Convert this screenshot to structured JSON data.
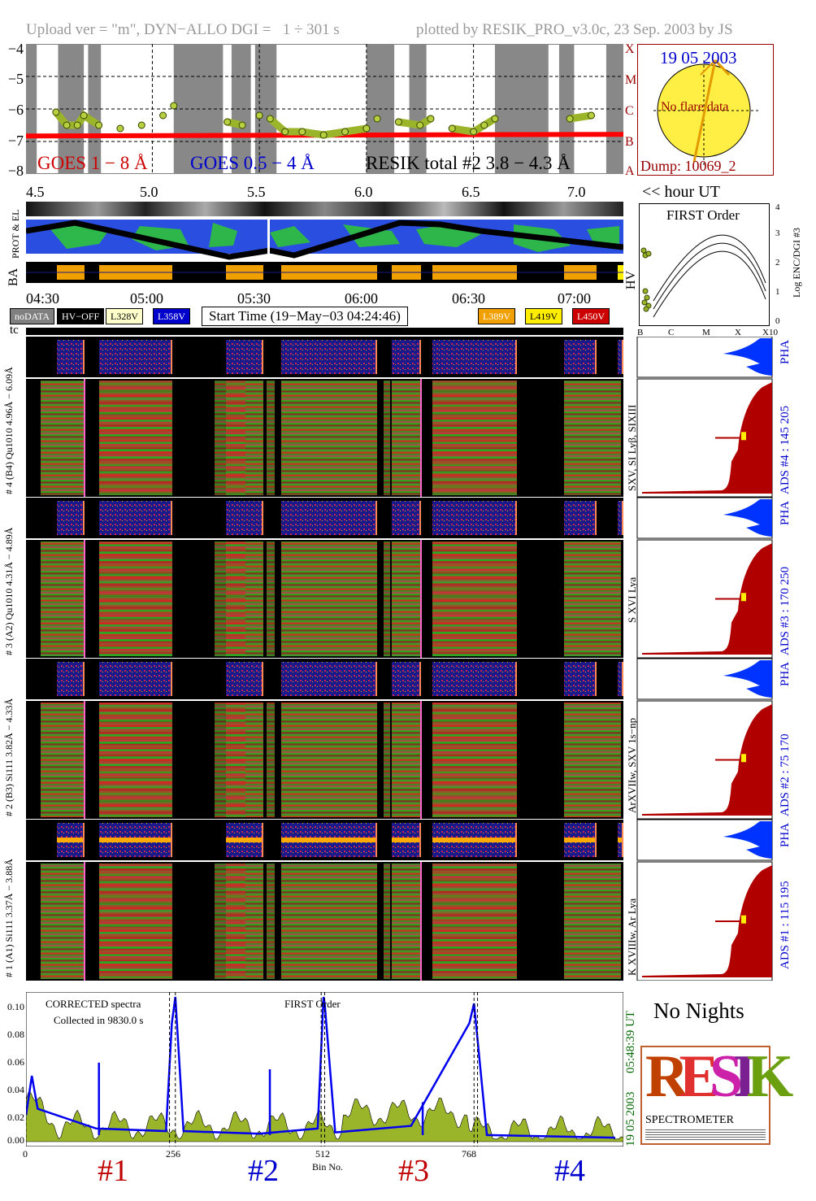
{
  "header": {
    "left": "Upload ver = \"m\", DYN−ALLO DGI =   1 ÷ 301 s",
    "right": "plotted by RESIK_PRO_v3.0c, 23 Sep. 2003 by JS"
  },
  "goes": {
    "ylabels": [
      "−4",
      "−5",
      "−6",
      "−7",
      "−8"
    ],
    "classes": [
      "X",
      "M",
      "C",
      "B",
      "A"
    ],
    "legend1": "GOES 1 − 8 Å",
    "legend2": "GOES 0.5 − 4 Å",
    "legend3": "RESIK total #2  3.8 − 4.3 Å",
    "xlabels": [
      "4.5",
      "5.0",
      "5.5",
      "6.0",
      "6.5",
      "7.0"
    ],
    "xunit": "<< hour UT"
  },
  "sun": {
    "date": "19 05 2003",
    "noflare": "No flare data",
    "dump": "Dump: 10069_2"
  },
  "orbit": {
    "label_protel": "PROT & EL",
    "label_ba": "BA",
    "label_hv": "HV",
    "times": [
      "04:30",
      "05:00",
      "05:30",
      "06:00",
      "06:30",
      "07:00"
    ]
  },
  "first_order": {
    "title": "FIRST Order",
    "ylabel": "Log ENC/DGI #3",
    "yticks": [
      "4",
      "3",
      "2",
      "1",
      "0"
    ],
    "xticks": [
      "B",
      "C",
      "M",
      "X",
      "X10"
    ]
  },
  "status_bar": {
    "nodata": "noDATA",
    "hvoff": "HV−OFF",
    "l328": "L328V",
    "l358": "L358V",
    "start_time": "Start Time (19−May−03 04:24:46)",
    "l389": "L389V",
    "l419": "L419V",
    "l450": "L450V",
    "tc": "tc"
  },
  "channels": [
    {
      "pha_label": "# 4 (B4)  Qu1010  4.96Å − 6.09Å",
      "spec": "SXV, SI Lyβ, SIXIII",
      "ads": "ADS #4 :   145 205",
      "pha": "PHA"
    },
    {
      "pha_label": "# 3 (A2)  Qu1010  4.31Å − 4.89Å",
      "spec": "S XVI Lya",
      "ads": "ADS #3 :   170 250",
      "pha": "PHA"
    },
    {
      "pha_label": "# 2 (B3)  Si111  3.82Å − 4.33Å",
      "spec": "ArXVIIw, SXV 1s−np",
      "ads": "ADS #2 :    75 170",
      "pha": "PHA"
    },
    {
      "pha_label": "# 1 (A1)  Si111  3.37Å − 3.88Å",
      "spec": "K XVIIIw, Ar Lya",
      "ads": "ADS #1 :   115 195",
      "pha": "PHA"
    }
  ],
  "corrected": {
    "title": "CORRECTED spectra",
    "collected": "Collected in  9830.0 s",
    "first_order": "FIRST Order",
    "yticks": [
      "0.10",
      "0.08",
      "0.06",
      "0.04",
      "0.02",
      "0.00"
    ],
    "xticks": [
      "0",
      "256",
      "512",
      "768"
    ],
    "xlabel": "Bin No.",
    "side_time": "05:48:39 UT",
    "side_date": "19 05 2003",
    "channels": [
      "#1",
      "#2",
      "#3",
      "#4"
    ]
  },
  "no_nights": "No Nights",
  "logo": {
    "spectrometer": "SPECTROMETER",
    "big": "RESIK"
  },
  "colors": {
    "red": "#c00000",
    "blue": "#0000cc",
    "green": "#008000",
    "olive": "#9ab52a",
    "orange": "#f0a000",
    "gray": "#808080",
    "darkred": "#b00000"
  },
  "chart_data": [
    {
      "type": "line",
      "title": "",
      "xlabel": "<< hour UT",
      "ylabel": "",
      "x_ticks": [
        4.5,
        5.0,
        5.5,
        6.0,
        6.5,
        7.0
      ],
      "xlim": [
        4.41,
        7.2
      ],
      "ylim": [
        -8,
        -4
      ],
      "grid": true,
      "series": [
        {
          "name": "GOES 1 − 8 Å",
          "x": [
            4.41,
            7.2
          ],
          "y": [
            -6.83,
            -6.78
          ]
        },
        {
          "name": "RESIK total #2  3.8 − 4.3 Å",
          "x": [
            4.55,
            4.6,
            4.65,
            4.68,
            4.75,
            4.85,
            4.95,
            5.05,
            5.1,
            5.35,
            5.42,
            5.5,
            5.55,
            5.62,
            5.7,
            5.8,
            5.9,
            6.0,
            6.05,
            6.15,
            6.25,
            6.3,
            6.4,
            6.5,
            6.55,
            6.6,
            6.95,
            7.05
          ],
          "y": [
            -6.1,
            -6.5,
            -6.5,
            -6.2,
            -6.5,
            -6.6,
            -6.5,
            -6.2,
            -5.9,
            -6.4,
            -6.5,
            -6.2,
            -6.3,
            -6.7,
            -6.7,
            -6.8,
            -6.7,
            -6.6,
            -6.3,
            -6.4,
            -6.5,
            -6.3,
            -6.6,
            -6.7,
            -6.5,
            -6.3,
            -6.3,
            -6.2
          ]
        }
      ]
    },
    {
      "type": "line",
      "title": "CORRECTED spectra",
      "xlabel": "Bin No.",
      "x_ticks": [
        0,
        256,
        512,
        768
      ],
      "xlim": [
        0,
        1024
      ],
      "ylim": [
        0,
        0.11
      ],
      "series": [
        {
          "name": "",
          "x": [
            0,
            10,
            20,
            120,
            240,
            250,
            256,
            270,
            400,
            500,
            510,
            512,
            530,
            660,
            760,
            768,
            790,
            1010
          ],
          "y": [
            0.02,
            0.05,
            0.025,
            0.01,
            0.008,
            0.09,
            0.11,
            0.008,
            0.006,
            0.01,
            0.11,
            0.105,
            0.007,
            0.012,
            0.09,
            0.105,
            0.005,
            0.003
          ]
        }
      ]
    }
  ]
}
